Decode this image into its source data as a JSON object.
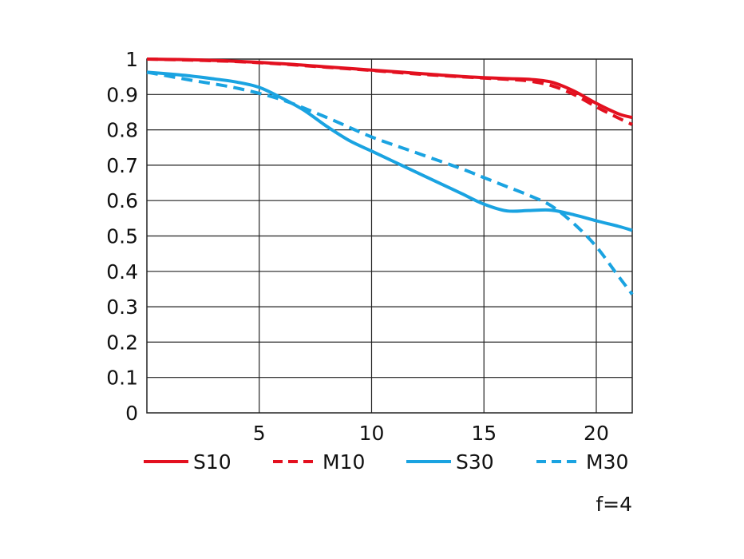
{
  "chart_data": {
    "type": "line",
    "title": "",
    "xlabel": "",
    "ylabel": "",
    "xlim": [
      0,
      21.6
    ],
    "ylim": [
      0,
      1
    ],
    "x_ticks": [
      5,
      10,
      15,
      20
    ],
    "x_tick_labels": [
      "5",
      "10",
      "15",
      "20"
    ],
    "y_ticks": [
      0,
      0.1,
      0.2,
      0.3,
      0.4,
      0.5,
      0.6,
      0.7,
      0.8,
      0.9,
      1
    ],
    "y_tick_labels": [
      "0",
      "0.1",
      "0.2",
      "0.3",
      "0.4",
      "0.5",
      "0.6",
      "0.7",
      "0.8",
      "0.9",
      "1"
    ],
    "grid": true,
    "legend_position": "bottom",
    "annotation": "f=4",
    "series": [
      {
        "name": "S10",
        "color": "#e3101f",
        "dash": "solid",
        "x": [
          0,
          2,
          4,
          6,
          8,
          10,
          12,
          14,
          16,
          17,
          18,
          19,
          20,
          21,
          21.6
        ],
        "y": [
          1.0,
          0.998,
          0.994,
          0.987,
          0.978,
          0.969,
          0.96,
          0.951,
          0.945,
          0.943,
          0.935,
          0.91,
          0.875,
          0.845,
          0.835
        ]
      },
      {
        "name": "M10",
        "color": "#e3101f",
        "dash": "dashed",
        "x": [
          0,
          2,
          4,
          6,
          8,
          10,
          12,
          14,
          16,
          17,
          18,
          19,
          20,
          21,
          21.6
        ],
        "y": [
          1.0,
          0.997,
          0.993,
          0.986,
          0.977,
          0.968,
          0.958,
          0.95,
          0.943,
          0.938,
          0.925,
          0.9,
          0.865,
          0.833,
          0.815
        ]
      },
      {
        "name": "S30",
        "color": "#1aa3e1",
        "dash": "solid",
        "x": [
          0,
          1,
          2,
          3,
          4,
          5,
          6,
          7,
          8,
          9,
          10,
          11,
          12,
          13,
          14,
          15,
          16,
          17,
          18,
          19,
          20,
          21,
          21.6
        ],
        "y": [
          0.963,
          0.958,
          0.952,
          0.944,
          0.935,
          0.92,
          0.89,
          0.855,
          0.81,
          0.77,
          0.74,
          0.71,
          0.68,
          0.65,
          0.62,
          0.59,
          0.571,
          0.572,
          0.573,
          0.56,
          0.543,
          0.527,
          0.516
        ]
      },
      {
        "name": "M30",
        "color": "#1aa3e1",
        "dash": "dashed",
        "x": [
          0,
          2,
          4,
          6,
          8,
          10,
          12,
          14,
          15,
          16,
          17,
          18,
          19,
          20,
          21,
          21.6
        ],
        "y": [
          0.963,
          0.94,
          0.918,
          0.885,
          0.835,
          0.78,
          0.735,
          0.69,
          0.665,
          0.64,
          0.615,
          0.585,
          0.535,
          0.47,
          0.385,
          0.335
        ]
      }
    ]
  }
}
